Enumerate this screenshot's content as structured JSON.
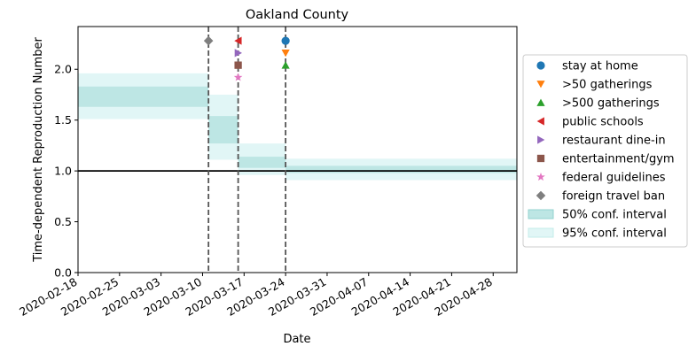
{
  "chart_data": {
    "type": "step-line",
    "title": "Oakland County",
    "xlabel": "Date",
    "ylabel": "Time-dependent Reproduction Number",
    "xlim": [
      "2020-02-18",
      "2020-05-02"
    ],
    "ylim": [
      0,
      2.42
    ],
    "x_ticks": [
      "2020-02-18",
      "2020-02-25",
      "2020-03-03",
      "2020-03-10",
      "2020-03-17",
      "2020-03-24",
      "2020-03-31",
      "2020-04-07",
      "2020-04-14",
      "2020-04-21",
      "2020-04-28"
    ],
    "y_ticks": [
      0.0,
      0.5,
      1.0,
      1.5,
      2.0
    ],
    "y_tick_labels": [
      "0.0",
      "0.5",
      "1.0",
      "1.5",
      "2.0"
    ],
    "reference_line": 1.0,
    "intervals": [
      {
        "start": "2020-02-18",
        "end": "2020-03-11",
        "ci50": [
          1.63,
          1.83
        ],
        "ci95": [
          1.51,
          1.96
        ]
      },
      {
        "start": "2020-03-11",
        "end": "2020-03-16",
        "ci50": [
          1.27,
          1.54
        ],
        "ci95": [
          1.11,
          1.75
        ]
      },
      {
        "start": "2020-03-16",
        "end": "2020-03-24",
        "ci50": [
          1.03,
          1.14
        ],
        "ci95": [
          0.96,
          1.27
        ]
      },
      {
        "start": "2020-03-24",
        "end": "2020-05-02",
        "ci50": [
          0.98,
          1.05
        ],
        "ci95": [
          0.91,
          1.12
        ]
      }
    ],
    "intervention_lines": [
      "2020-03-11",
      "2020-03-16",
      "2020-03-24"
    ],
    "markers": [
      {
        "name": "stay at home",
        "date": "2020-03-24",
        "y": 2.28,
        "shape": "circle",
        "color": "#1f77b4"
      },
      {
        "name": ">50 gatherings",
        "date": "2020-03-24",
        "y": 2.16,
        "shape": "triangle-down",
        "color": "#ff7f0e"
      },
      {
        "name": ">500 gatherings",
        "date": "2020-03-24",
        "y": 2.04,
        "shape": "triangle-up",
        "color": "#2ca02c"
      },
      {
        "name": "public schools",
        "date": "2020-03-16",
        "y": 2.28,
        "shape": "triangle-left",
        "color": "#d62728"
      },
      {
        "name": "restaurant dine-in",
        "date": "2020-03-16",
        "y": 2.16,
        "shape": "triangle-right",
        "color": "#9467bd"
      },
      {
        "name": "entertainment/gym",
        "date": "2020-03-16",
        "y": 2.04,
        "shape": "square",
        "color": "#8c564b"
      },
      {
        "name": "federal guidelines",
        "date": "2020-03-16",
        "y": 1.92,
        "shape": "star",
        "color": "#e377c2"
      },
      {
        "name": "foreign travel ban",
        "date": "2020-03-11",
        "y": 2.28,
        "shape": "diamond",
        "color": "#7f7f7f"
      }
    ],
    "legend": {
      "placement": "right",
      "entries": [
        {
          "label": "stay at home",
          "shape": "circle",
          "color": "#1f77b4"
        },
        {
          "label": ">50 gatherings",
          "shape": "triangle-down",
          "color": "#ff7f0e"
        },
        {
          "label": ">500 gatherings",
          "shape": "triangle-up",
          "color": "#2ca02c"
        },
        {
          "label": "public schools",
          "shape": "triangle-left",
          "color": "#d62728"
        },
        {
          "label": "restaurant dine-in",
          "shape": "triangle-right",
          "color": "#9467bd"
        },
        {
          "label": "entertainment/gym",
          "shape": "square",
          "color": "#8c564b"
        },
        {
          "label": "federal guidelines",
          "shape": "star",
          "color": "#e377c2"
        },
        {
          "label": "foreign travel ban",
          "shape": "diamond",
          "color": "#7f7f7f"
        },
        {
          "label": "50% conf. interval",
          "shape": "patch",
          "color": "#bde6e4"
        },
        {
          "label": "95% conf. interval",
          "shape": "patch",
          "color": "#e1f6f6"
        }
      ]
    },
    "colors": {
      "ci50": "#bde6e4",
      "ci95": "#e1f6f6",
      "reference": "#000000",
      "intervention": "#555555"
    }
  }
}
